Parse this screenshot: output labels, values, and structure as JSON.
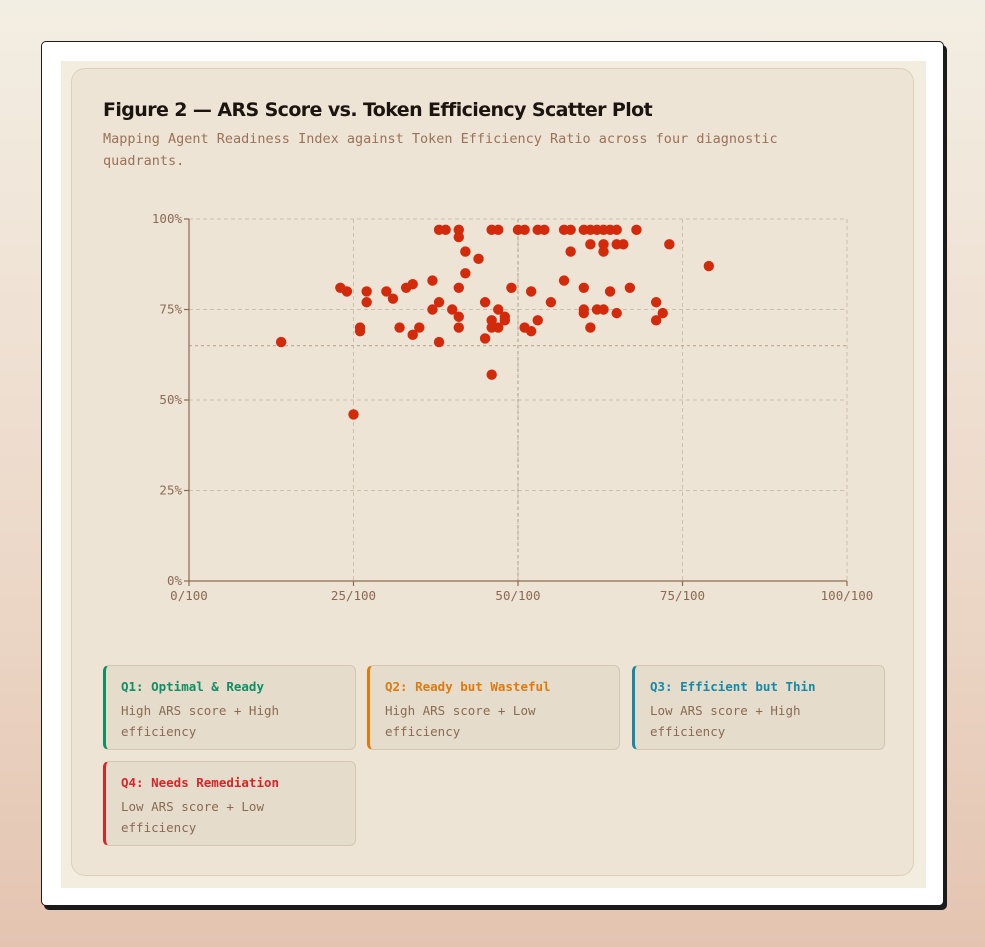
{
  "figure": {
    "title": "Figure 2 — ARS Score vs. Token Efficiency Scatter Plot",
    "subtitle": "Mapping Agent Readiness Index against Token Efficiency Ratio across four diagnostic quadrants."
  },
  "colors": {
    "point": "#d42a0c",
    "axis": "#8c6a52",
    "grid": "#cdbfae",
    "tick_text": "#8c6a52"
  },
  "chart_data": {
    "type": "scatter",
    "title": "Figure 2 — ARS Score vs. Token Efficiency Scatter Plot",
    "xlim": [
      0,
      100
    ],
    "ylim": [
      0,
      100
    ],
    "x_ticks": [
      {
        "value": 0,
        "label": "0/100"
      },
      {
        "value": 25,
        "label": "25/100"
      },
      {
        "value": 50,
        "label": "50/100"
      },
      {
        "value": 75,
        "label": "75/100"
      },
      {
        "value": 100,
        "label": "100/100"
      }
    ],
    "y_ticks": [
      {
        "value": 0,
        "label": "0%"
      },
      {
        "value": 25,
        "label": "25%"
      },
      {
        "value": 50,
        "label": "50%"
      },
      {
        "value": 75,
        "label": "75%"
      },
      {
        "value": 100,
        "label": "100%"
      }
    ],
    "grid": true,
    "threshold_lines": {
      "x": 50,
      "y": 65
    },
    "points": [
      {
        "x": 14,
        "y": 66
      },
      {
        "x": 23,
        "y": 81
      },
      {
        "x": 24,
        "y": 80
      },
      {
        "x": 25,
        "y": 46
      },
      {
        "x": 26,
        "y": 70
      },
      {
        "x": 26,
        "y": 69
      },
      {
        "x": 27,
        "y": 80
      },
      {
        "x": 27,
        "y": 77
      },
      {
        "x": 30,
        "y": 80
      },
      {
        "x": 31,
        "y": 78
      },
      {
        "x": 32,
        "y": 70
      },
      {
        "x": 33,
        "y": 81
      },
      {
        "x": 34,
        "y": 82
      },
      {
        "x": 34,
        "y": 68
      },
      {
        "x": 35,
        "y": 70
      },
      {
        "x": 37,
        "y": 83
      },
      {
        "x": 37,
        "y": 75
      },
      {
        "x": 38,
        "y": 77
      },
      {
        "x": 38,
        "y": 66
      },
      {
        "x": 38,
        "y": 97
      },
      {
        "x": 39,
        "y": 97
      },
      {
        "x": 40,
        "y": 75
      },
      {
        "x": 41,
        "y": 97
      },
      {
        "x": 41,
        "y": 95
      },
      {
        "x": 41,
        "y": 81
      },
      {
        "x": 41,
        "y": 73
      },
      {
        "x": 41,
        "y": 70
      },
      {
        "x": 42,
        "y": 91
      },
      {
        "x": 42,
        "y": 85
      },
      {
        "x": 44,
        "y": 89
      },
      {
        "x": 45,
        "y": 77
      },
      {
        "x": 45,
        "y": 67
      },
      {
        "x": 46,
        "y": 97
      },
      {
        "x": 46,
        "y": 72
      },
      {
        "x": 46,
        "y": 70
      },
      {
        "x": 46,
        "y": 57
      },
      {
        "x": 47,
        "y": 97
      },
      {
        "x": 47,
        "y": 75
      },
      {
        "x": 47,
        "y": 70
      },
      {
        "x": 48,
        "y": 73
      },
      {
        "x": 48,
        "y": 72
      },
      {
        "x": 49,
        "y": 81
      },
      {
        "x": 50,
        "y": 97
      },
      {
        "x": 51,
        "y": 97
      },
      {
        "x": 51,
        "y": 70
      },
      {
        "x": 52,
        "y": 80
      },
      {
        "x": 52,
        "y": 69
      },
      {
        "x": 53,
        "y": 97
      },
      {
        "x": 53,
        "y": 72
      },
      {
        "x": 54,
        "y": 97
      },
      {
        "x": 55,
        "y": 77
      },
      {
        "x": 57,
        "y": 97
      },
      {
        "x": 57,
        "y": 83
      },
      {
        "x": 58,
        "y": 97
      },
      {
        "x": 58,
        "y": 91
      },
      {
        "x": 60,
        "y": 97
      },
      {
        "x": 60,
        "y": 81
      },
      {
        "x": 60,
        "y": 75
      },
      {
        "x": 60,
        "y": 74
      },
      {
        "x": 61,
        "y": 97
      },
      {
        "x": 61,
        "y": 93
      },
      {
        "x": 61,
        "y": 70
      },
      {
        "x": 62,
        "y": 97
      },
      {
        "x": 62,
        "y": 75
      },
      {
        "x": 63,
        "y": 97
      },
      {
        "x": 63,
        "y": 93
      },
      {
        "x": 63,
        "y": 91
      },
      {
        "x": 63,
        "y": 75
      },
      {
        "x": 64,
        "y": 97
      },
      {
        "x": 64,
        "y": 80
      },
      {
        "x": 65,
        "y": 97
      },
      {
        "x": 65,
        "y": 93
      },
      {
        "x": 65,
        "y": 74
      },
      {
        "x": 66,
        "y": 93
      },
      {
        "x": 67,
        "y": 81
      },
      {
        "x": 68,
        "y": 97
      },
      {
        "x": 71,
        "y": 77
      },
      {
        "x": 71,
        "y": 72
      },
      {
        "x": 72,
        "y": 74
      },
      {
        "x": 73,
        "y": 93
      },
      {
        "x": 79,
        "y": 87
      }
    ]
  },
  "legend": [
    {
      "label": "Q1: Optimal & Ready",
      "desc": "High ARS score + High efficiency",
      "color": "#0f8f63"
    },
    {
      "label": "Q2: Ready but Wasteful",
      "desc": "High ARS score + Low efficiency",
      "color": "#de7a0e"
    },
    {
      "label": "Q3: Efficient but Thin",
      "desc": "Low ARS score + High efficiency",
      "color": "#1789a6"
    },
    {
      "label": "Q4: Needs Remediation",
      "desc": "Low ARS score + Low efficiency",
      "color": "#d7262a"
    }
  ]
}
